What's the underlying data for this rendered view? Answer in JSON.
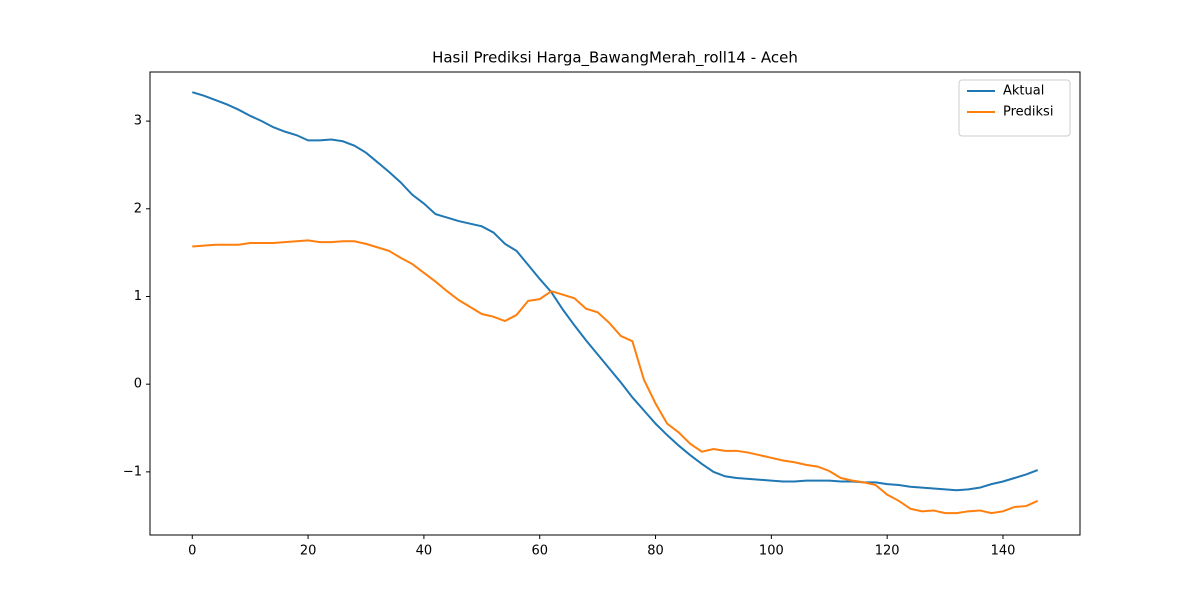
{
  "chart_data": {
    "type": "line",
    "title": "Hasil Prediksi Harga_BawangMerah_roll14 - Aceh",
    "x": [
      0,
      2,
      4,
      6,
      8,
      10,
      12,
      14,
      16,
      18,
      20,
      22,
      24,
      26,
      28,
      30,
      32,
      34,
      36,
      38,
      40,
      42,
      44,
      46,
      48,
      50,
      52,
      54,
      56,
      58,
      60,
      62,
      64,
      66,
      68,
      70,
      72,
      74,
      76,
      78,
      80,
      82,
      84,
      86,
      88,
      90,
      92,
      94,
      96,
      98,
      100,
      102,
      104,
      106,
      108,
      110,
      112,
      114,
      116,
      118,
      120,
      122,
      124,
      126,
      128,
      130,
      132,
      134,
      136,
      138,
      140,
      142,
      144,
      146
    ],
    "series": [
      {
        "name": "Aktual",
        "color": "#1f77b4",
        "values": [
          3.33,
          3.29,
          3.24,
          3.19,
          3.13,
          3.06,
          3.0,
          2.93,
          2.88,
          2.84,
          2.78,
          2.78,
          2.79,
          2.77,
          2.72,
          2.64,
          2.53,
          2.42,
          2.3,
          2.16,
          2.06,
          1.94,
          1.9,
          1.86,
          1.83,
          1.8,
          1.73,
          1.6,
          1.52,
          1.36,
          1.2,
          1.05,
          0.85,
          0.67,
          0.5,
          0.34,
          0.18,
          0.02,
          -0.15,
          -0.3,
          -0.45,
          -0.58,
          -0.7,
          -0.81,
          -0.91,
          -1.0,
          -1.05,
          -1.07,
          -1.08,
          -1.09,
          -1.1,
          -1.11,
          -1.11,
          -1.1,
          -1.1,
          -1.1,
          -1.11,
          -1.11,
          -1.12,
          -1.12,
          -1.14,
          -1.15,
          -1.17,
          -1.18,
          -1.19,
          -1.2,
          -1.21,
          -1.2,
          -1.18,
          -1.14,
          -1.11,
          -1.07,
          -1.03,
          -0.98
        ]
      },
      {
        "name": "Prediksi",
        "color": "#ff7f0e",
        "values": [
          1.57,
          1.58,
          1.59,
          1.59,
          1.59,
          1.61,
          1.61,
          1.61,
          1.62,
          1.63,
          1.64,
          1.62,
          1.62,
          1.63,
          1.63,
          1.6,
          1.56,
          1.52,
          1.44,
          1.37,
          1.27,
          1.17,
          1.06,
          0.96,
          0.88,
          0.8,
          0.77,
          0.72,
          0.79,
          0.95,
          0.97,
          1.06,
          1.02,
          0.98,
          0.86,
          0.82,
          0.7,
          0.55,
          0.49,
          0.05,
          -0.22,
          -0.45,
          -0.55,
          -0.68,
          -0.77,
          -0.74,
          -0.76,
          -0.76,
          -0.78,
          -0.81,
          -0.84,
          -0.87,
          -0.89,
          -0.92,
          -0.94,
          -0.99,
          -1.07,
          -1.1,
          -1.12,
          -1.15,
          -1.26,
          -1.33,
          -1.42,
          -1.45,
          -1.44,
          -1.47,
          -1.47,
          -1.45,
          -1.44,
          -1.47,
          -1.45,
          -1.4,
          -1.39,
          -1.33
        ]
      }
    ],
    "xlim": [
      -7.3,
      153.3
    ],
    "xticks": [
      0,
      20,
      40,
      60,
      80,
      100,
      120,
      140
    ],
    "ylim": [
      -1.72,
      3.56
    ],
    "yticks": [
      {
        "value": -1,
        "label": "−1"
      },
      0,
      1,
      2,
      3
    ],
    "legend": "upper right",
    "grid": false
  }
}
